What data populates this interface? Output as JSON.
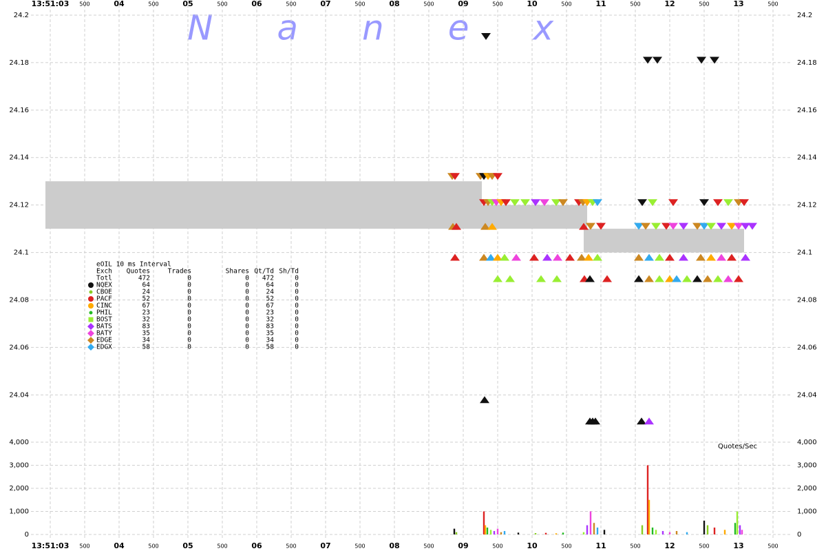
{
  "chart_data": {
    "type": "tick-chart",
    "title": "Nanex",
    "volume_label": "Quotes/Sec",
    "grid": true,
    "xlim": [
      2.72,
      13.77
    ],
    "xticks": [
      {
        "value": 3,
        "label": "13:51:03"
      },
      {
        "value": 3.5,
        "label": "500"
      },
      {
        "value": 4,
        "label": "04"
      },
      {
        "value": 4.5,
        "label": "500"
      },
      {
        "value": 5,
        "label": "05"
      },
      {
        "value": 5.5,
        "label": "500"
      },
      {
        "value": 6,
        "label": "06"
      },
      {
        "value": 6.5,
        "label": "500"
      },
      {
        "value": 7,
        "label": "07"
      },
      {
        "value": 7.5,
        "label": "500"
      },
      {
        "value": 8,
        "label": "08"
      },
      {
        "value": 8.5,
        "label": "500"
      },
      {
        "value": 9,
        "label": "09"
      },
      {
        "value": 9.5,
        "label": "500"
      },
      {
        "value": 10,
        "label": "10"
      },
      {
        "value": 10.5,
        "label": "500"
      },
      {
        "value": 11,
        "label": "11"
      },
      {
        "value": 11.5,
        "label": "500"
      },
      {
        "value": 12,
        "label": "12"
      },
      {
        "value": 12.5,
        "label": "500"
      },
      {
        "value": 13,
        "label": "13"
      },
      {
        "value": 13.5,
        "label": "500"
      }
    ],
    "ylim": [
      24.025,
      24.2
    ],
    "yticks": [
      24.04,
      24.06,
      24.08,
      24.1,
      24.12,
      24.14,
      24.16,
      24.18,
      24.2
    ],
    "y2lim": [
      0,
      4000
    ],
    "y2ticks": [
      0,
      {
        "value": 1000,
        "label": "1,000"
      },
      {
        "value": 2000,
        "label": "2,000"
      },
      {
        "value": 3000,
        "label": "3,000"
      },
      {
        "value": 4000,
        "label": "4,000"
      }
    ],
    "nbbo_color": "#cccccc",
    "nbbo": [
      {
        "x": [
          2.93,
          9.27
        ],
        "bid": 24.11,
        "ask": 24.13
      },
      {
        "x": [
          9.27,
          10.8
        ],
        "bid": 24.11,
        "ask": 24.12
      },
      {
        "x": [
          10.75,
          13.08
        ],
        "bid": 24.1,
        "ask": 24.11
      }
    ],
    "legend": {
      "title": "eOIL 10 ms Interval",
      "columns": [
        "Exch",
        "Quotes",
        "Trades",
        "Shares",
        "Qt/Td",
        "Sh/Td"
      ],
      "rows": [
        {
          "cells": [
            "Totl",
            472,
            0,
            0,
            472,
            0
          ]
        },
        {
          "cells": [
            "NQEX",
            64,
            0,
            0,
            64,
            0
          ],
          "color": "#111111",
          "marker": "circle"
        },
        {
          "cells": [
            "CBOE",
            24,
            0,
            0,
            24,
            0
          ],
          "color": "#88cc22",
          "marker": "dot"
        },
        {
          "cells": [
            "PACF",
            52,
            0,
            0,
            52,
            0
          ],
          "color": "#dd2222",
          "marker": "circle"
        },
        {
          "cells": [
            "CINC",
            67,
            0,
            0,
            67,
            0
          ],
          "color": "#ffaa00",
          "marker": "circle"
        },
        {
          "cells": [
            "PHIL",
            23,
            0,
            0,
            23,
            0
          ],
          "color": "#22bb22",
          "marker": "dot"
        },
        {
          "cells": [
            "BOST",
            32,
            0,
            0,
            32,
            0
          ],
          "color": "#99ee33",
          "marker": "square"
        },
        {
          "cells": [
            "BATS",
            83,
            0,
            0,
            83,
            0
          ],
          "color": "#aa33ff",
          "marker": "diamond"
        },
        {
          "cells": [
            "BATY",
            35,
            0,
            0,
            35,
            0
          ],
          "color": "#ee44dd",
          "marker": "diamond"
        },
        {
          "cells": [
            "EDGE",
            34,
            0,
            0,
            34,
            0
          ],
          "color": "#cc8822",
          "marker": "diamond"
        },
        {
          "cells": [
            "EDGX",
            58,
            0,
            0,
            58,
            0
          ],
          "color": "#33aaee",
          "marker": "diamond"
        }
      ]
    },
    "quote_rows": [
      {
        "price": 24.191,
        "t": [
          9.33
        ],
        "exchange": [
          1
        ]
      },
      {
        "price": 24.181,
        "t": [
          11.68,
          11.82,
          12.46,
          12.65
        ],
        "exchange": [
          1,
          1,
          1,
          1
        ]
      },
      {
        "price": 24.132,
        "t": [
          8.84,
          8.88,
          9.25,
          9.3,
          9.36,
          9.42,
          9.5
        ],
        "exchange": [
          9,
          3,
          9,
          1,
          4,
          9,
          3
        ]
      },
      {
        "price": 24.121,
        "t": [
          9.3,
          9.36,
          9.42,
          9.48,
          9.55,
          9.62,
          9.75,
          9.9,
          10.05,
          10.18,
          10.35,
          10.45,
          10.68,
          10.74,
          10.8,
          10.88,
          10.95,
          11.6,
          11.75,
          12.05,
          12.5,
          12.7,
          12.85,
          13.0,
          13.08
        ],
        "exchange": [
          3,
          9,
          6,
          8,
          4,
          3,
          6,
          6,
          7,
          8,
          6,
          9,
          3,
          9,
          4,
          6,
          10,
          1,
          6,
          3,
          1,
          3,
          6,
          9,
          3
        ]
      },
      {
        "price": 24.111,
        "t": [
          8.85,
          8.9,
          9.32,
          9.42,
          10.75,
          10.85,
          11.0,
          11.55,
          11.65,
          11.8,
          11.95,
          12.05,
          12.2,
          12.4,
          12.5,
          12.6,
          12.75,
          12.9,
          13.0,
          13.1,
          13.2
        ],
        "exchange": [
          9,
          3,
          9,
          4,
          3,
          9,
          3,
          10,
          9,
          6,
          3,
          8,
          7,
          9,
          10,
          6,
          7,
          4,
          8,
          7,
          7
        ]
      },
      {
        "price": 24.098,
        "t": [
          8.88,
          9.3,
          9.4,
          9.5,
          9.6,
          9.77,
          10.03,
          10.22,
          10.37,
          10.55,
          10.72,
          10.82,
          10.95,
          11.55,
          11.7,
          11.85,
          12.0,
          12.2,
          12.45,
          12.6,
          12.75,
          12.9,
          13.1
        ],
        "exchange": [
          3,
          9,
          10,
          4,
          6,
          8,
          3,
          7,
          8,
          3,
          9,
          4,
          6,
          9,
          10,
          6,
          3,
          7,
          9,
          4,
          8,
          3,
          7
        ]
      },
      {
        "price": 24.089,
        "t": [
          9.5,
          9.68,
          10.13,
          10.36,
          10.76,
          10.84,
          11.09,
          11.55,
          11.7,
          11.85,
          12.0,
          12.1,
          12.25,
          12.4,
          12.55,
          12.7,
          12.85,
          13.0
        ],
        "exchange": [
          6,
          6,
          6,
          6,
          3,
          1,
          3,
          1,
          9,
          6,
          4,
          10,
          6,
          1,
          9,
          6,
          8,
          3
        ]
      },
      {
        "price": 24.038,
        "t": [
          9.31
        ],
        "exchange": [
          1
        ]
      },
      {
        "price": 24.029,
        "t": [
          10.84,
          10.88,
          10.92,
          11.59,
          11.7
        ],
        "exchange": [
          1,
          1,
          1,
          1,
          7
        ]
      }
    ],
    "volume": {
      "t": [
        8.87,
        8.9,
        9.3,
        9.32,
        9.35,
        9.4,
        9.45,
        9.5,
        9.55,
        9.6,
        9.8,
        10.05,
        10.2,
        10.35,
        10.45,
        10.75,
        10.8,
        10.85,
        10.9,
        10.95,
        11.05,
        11.6,
        11.68,
        11.7,
        11.75,
        11.8,
        11.9,
        12.0,
        12.1,
        12.25,
        12.5,
        12.55,
        12.65,
        12.8,
        12.95,
        12.98,
        13.02,
        13.05
      ],
      "values": [
        250,
        100,
        1000,
        400,
        300,
        200,
        150,
        250,
        100,
        150,
        80,
        60,
        70,
        50,
        80,
        100,
        400,
        1000,
        500,
        300,
        200,
        400,
        3000,
        1500,
        300,
        200,
        150,
        100,
        150,
        100,
        600,
        400,
        300,
        200,
        500,
        1000,
        400,
        200
      ]
    }
  }
}
